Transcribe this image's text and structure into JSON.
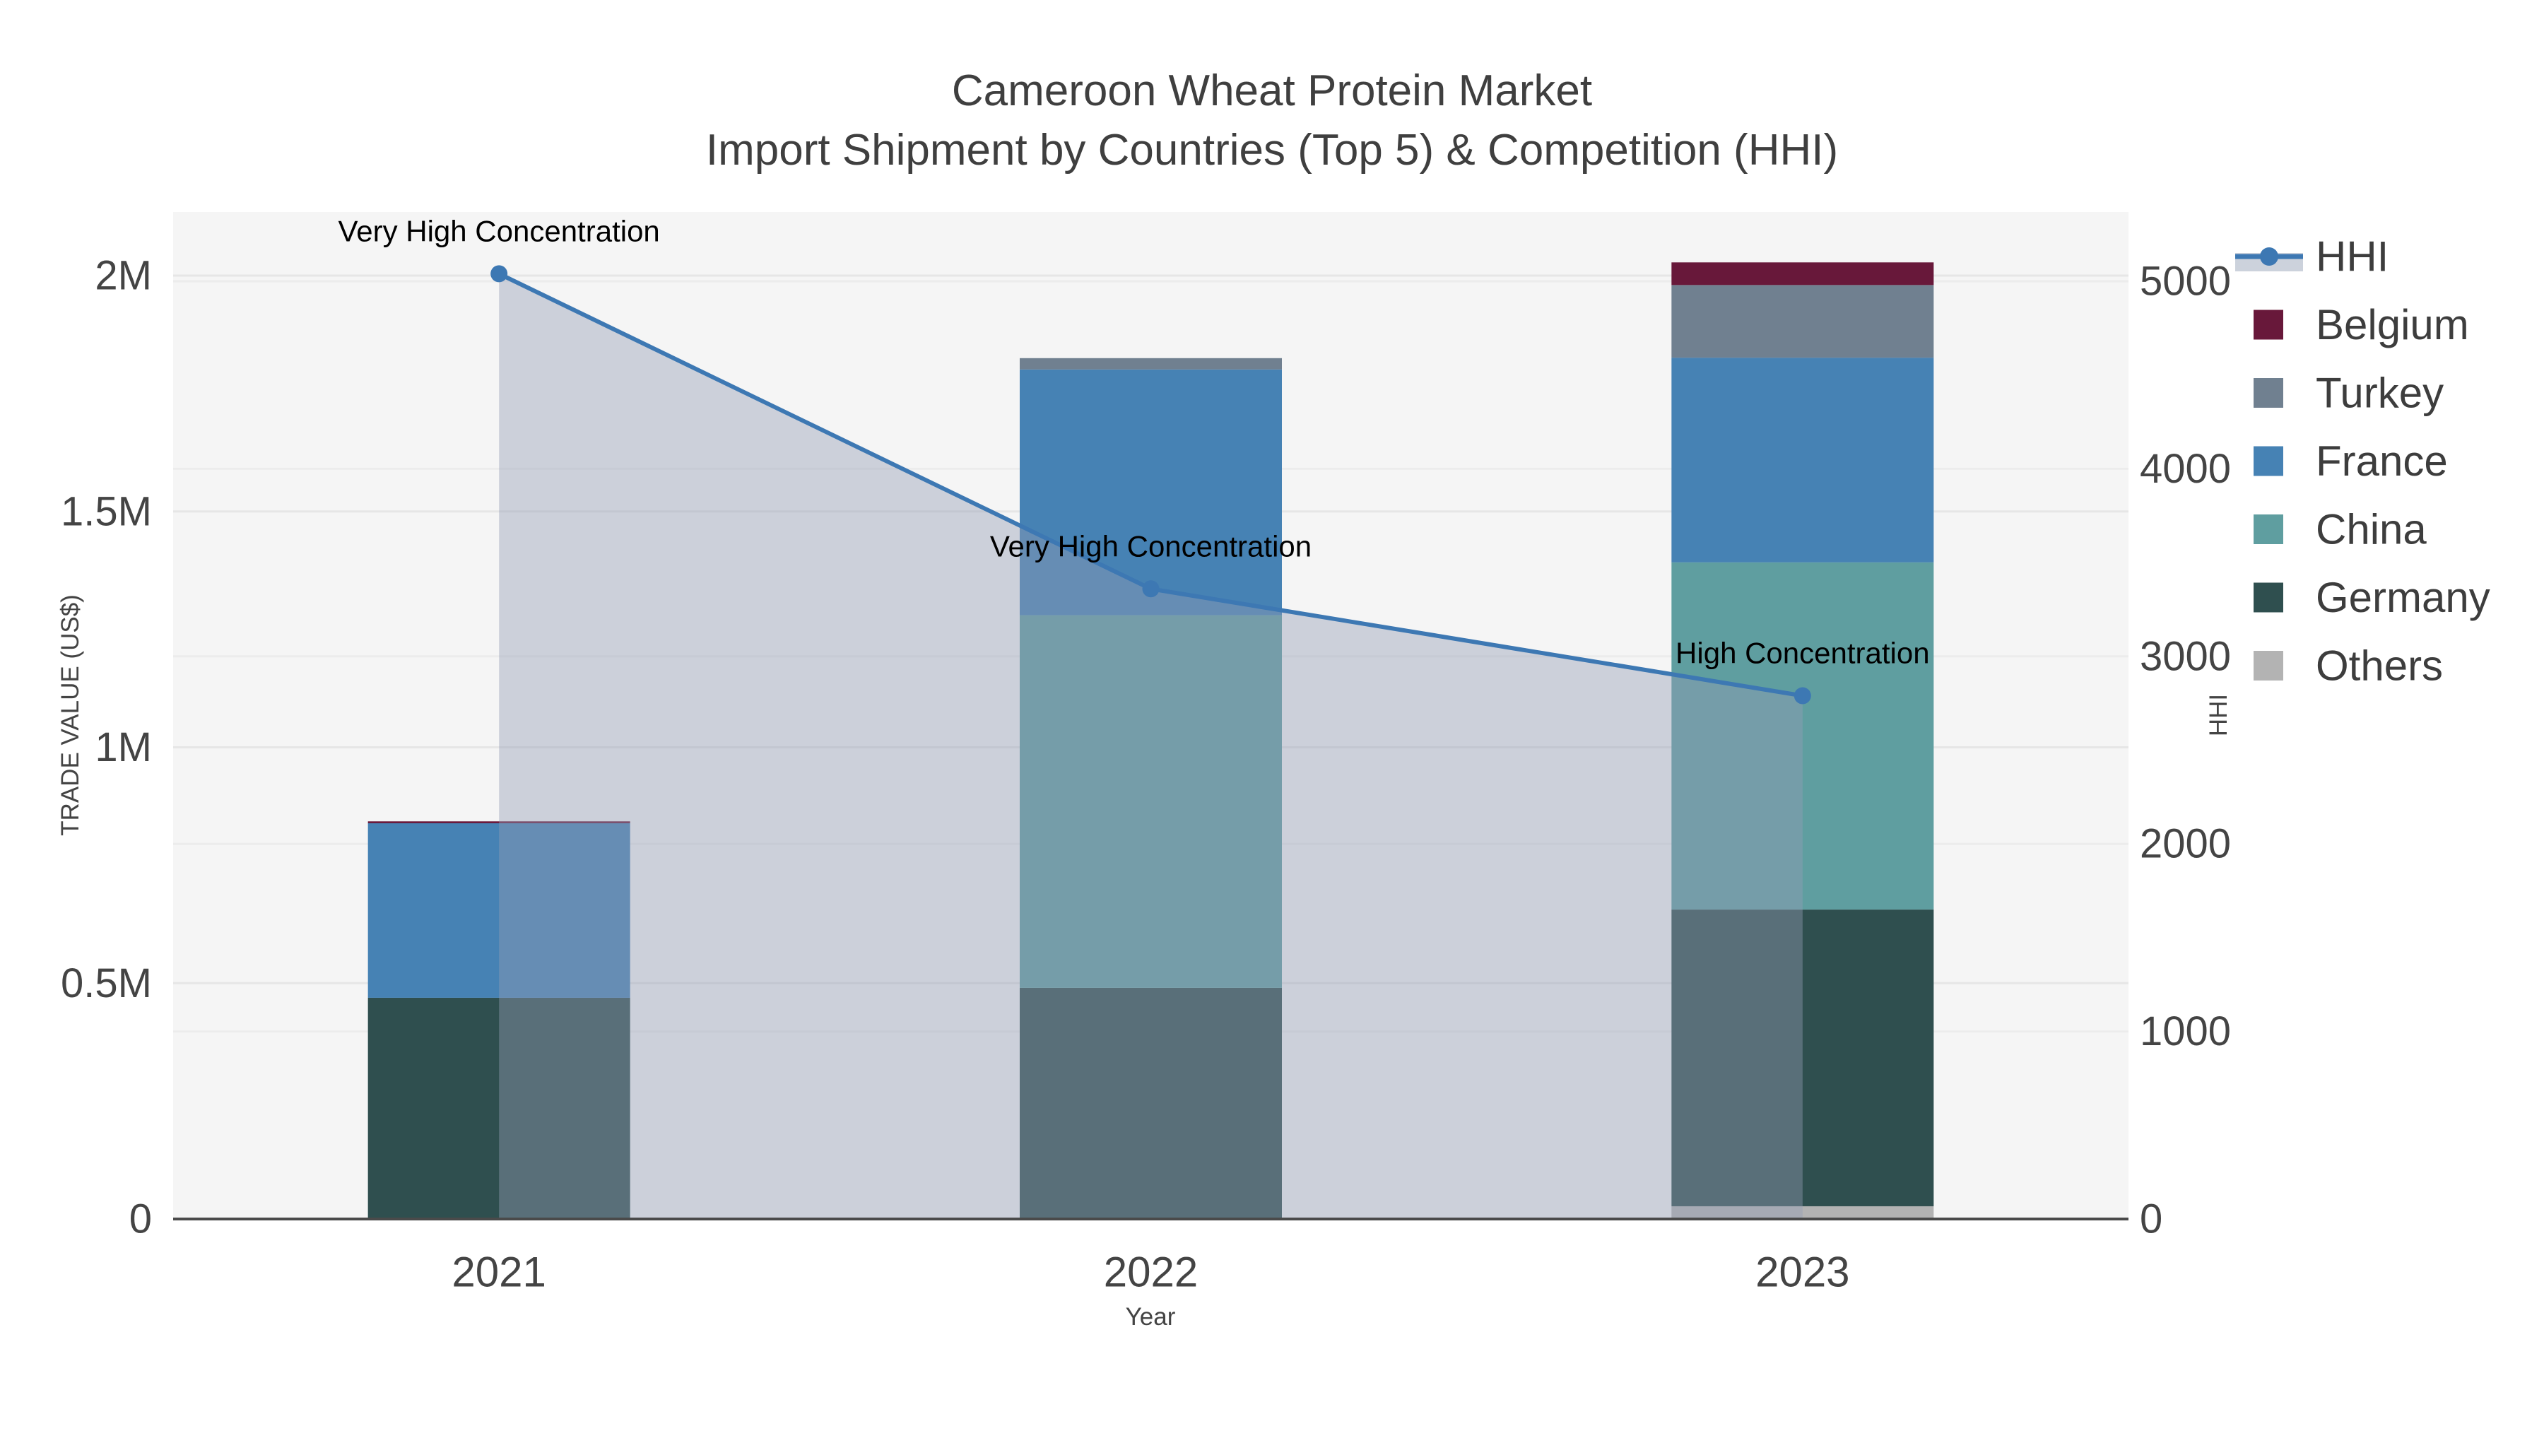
{
  "chart_data": {
    "type": "combo-stacked-bar-line",
    "title": "Cameroon Wheat Protein Market",
    "subtitle": "Import Shipment by Countries (Top 5) & Competition (HHI)",
    "xlabel": "Year",
    "categories": [
      "2021",
      "2022",
      "2023"
    ],
    "y_left": {
      "label": "TRADE VALUE (US$)",
      "ticks": [
        "0",
        "0.5M",
        "1M",
        "1.5M",
        "2M"
      ],
      "tick_values": [
        0,
        500000,
        1000000,
        1500000,
        2000000
      ],
      "axis_max": 2000000
    },
    "y_right": {
      "label": "HHI",
      "ticks": [
        "0",
        "1000",
        "2000",
        "3000",
        "4000",
        "5000"
      ],
      "tick_values": [
        0,
        1000,
        2000,
        3000,
        4000,
        5000
      ],
      "axis_max": 5000
    },
    "bar_series": [
      {
        "name": "Others",
        "color": "#b3b3b3",
        "values": [
          0,
          0,
          27000
        ]
      },
      {
        "name": "Germany",
        "color": "#2f4f4f",
        "values": [
          469000,
          490000,
          629000
        ]
      },
      {
        "name": "China",
        "color": "#5f9ea0",
        "values": [
          0,
          790000,
          736000
        ]
      },
      {
        "name": "France",
        "color": "#4682b4",
        "values": [
          370000,
          521000,
          434000
        ]
      },
      {
        "name": "Turkey",
        "color": "#708090",
        "values": [
          0,
          24000,
          154000
        ]
      },
      {
        "name": "Belgium",
        "color": "#68183a",
        "values": [
          4000,
          0,
          48000
        ]
      }
    ],
    "hhi_series": {
      "name": "HHI",
      "values": [
        5040,
        3360,
        2790
      ],
      "line_color": "#3d78b3",
      "fill_color": "rgba(148,158,180,0.42)",
      "legend_band_color": "#ccd2dc"
    },
    "annotations": [
      {
        "category": "2021",
        "text": "Very High Concentration"
      },
      {
        "category": "2022",
        "text": "Very High Concentration"
      },
      {
        "category": "2023",
        "text": "High Concentration"
      }
    ],
    "legend_order": [
      "HHI",
      "Belgium",
      "Turkey",
      "France",
      "China",
      "Germany",
      "Others"
    ],
    "grid": true,
    "legend_position": "right",
    "plot_bg_color": "#f5f5f5",
    "grid_color": "#e6e6e6",
    "axis_line_color": "#4a4a4a",
    "tick_text_color": "#444444",
    "annotation_text_color": "#000000"
  }
}
